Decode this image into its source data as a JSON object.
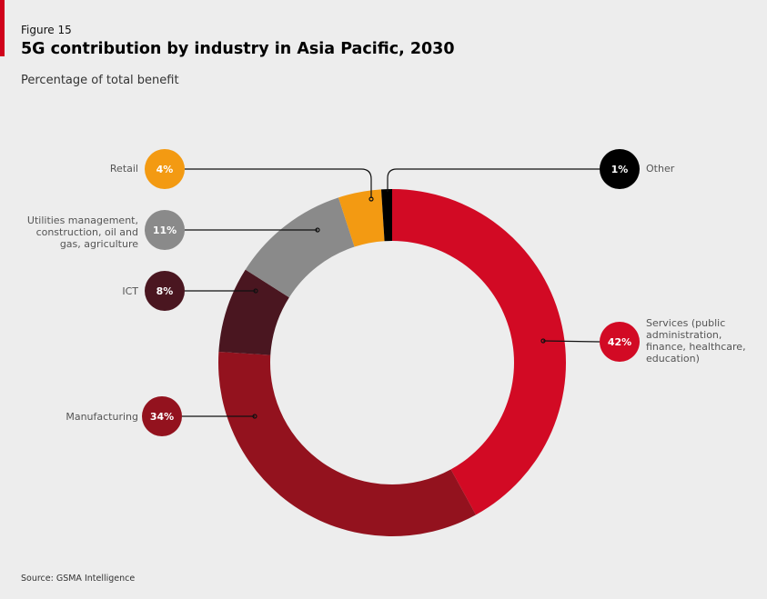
{
  "header": {
    "figure_label": "Figure 15",
    "title": "5G contribution by industry in Asia Pacific, 2030",
    "subtitle": "Percentage of total benefit"
  },
  "source": "Source: GSMA Intelligence",
  "chart_data": {
    "type": "pie",
    "style": "donut",
    "title": "5G contribution by industry in Asia Pacific, 2030",
    "subtitle": "Percentage of total benefit",
    "unit": "%",
    "slices": [
      {
        "label": "Services (public administration, finance, healthcare, education)",
        "value": 42,
        "display": "42%",
        "color": "#d20a24"
      },
      {
        "label": "Manufacturing",
        "value": 34,
        "display": "34%",
        "color": "#93121e"
      },
      {
        "label": "ICT",
        "value": 8,
        "display": "8%",
        "color": "#4a1620"
      },
      {
        "label": "Utilities management, construction, oil and gas, agriculture",
        "value": 11,
        "display": "11%",
        "color": "#8a8a8a"
      },
      {
        "label": "Retail",
        "value": 4,
        "display": "4%",
        "color": "#f39a12"
      },
      {
        "label": "Other",
        "value": 1,
        "display": "1%",
        "color": "#000000"
      }
    ]
  }
}
